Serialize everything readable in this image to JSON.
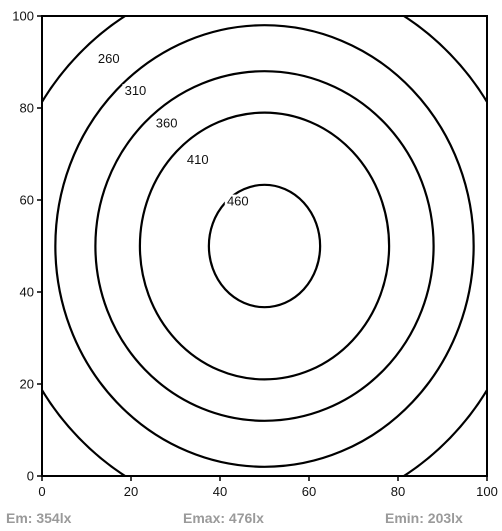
{
  "chart_data": {
    "type": "contour",
    "title": "",
    "xlabel": "",
    "ylabel": "",
    "xlim": [
      0,
      100
    ],
    "ylim": [
      0,
      100
    ],
    "xticks": [
      0,
      20,
      40,
      60,
      80,
      100
    ],
    "yticks": [
      0,
      20,
      40,
      60,
      80,
      100
    ],
    "grid": false,
    "center": [
      50,
      50
    ],
    "contours": [
      {
        "level": "460",
        "x_half_width": 12.5,
        "y_half_height": 13.3
      },
      {
        "level": "410",
        "x_half_width": 28,
        "y_half_height": 29
      },
      {
        "level": "360",
        "x_half_width": 38,
        "y_half_height": 38
      },
      {
        "level": "310",
        "x_half_width": 47,
        "y_half_height": 48
      },
      {
        "level": "260",
        "x_half_width": 59,
        "y_half_height": 59
      }
    ],
    "contour_labels": [
      {
        "text": "460",
        "x": 44,
        "y": 59
      },
      {
        "text": "410",
        "x": 35,
        "y": 68
      },
      {
        "text": "360",
        "x": 28,
        "y": 76
      },
      {
        "text": "310",
        "x": 21,
        "y": 83
      },
      {
        "text": "260",
        "x": 15,
        "y": 90
      }
    ],
    "line_color": "#000000",
    "stat_color": "#9a9a9a"
  },
  "stats": {
    "em": "Em:  354lx",
    "emax": "Emax:  476lx",
    "emin": "Emin:  203lx"
  }
}
